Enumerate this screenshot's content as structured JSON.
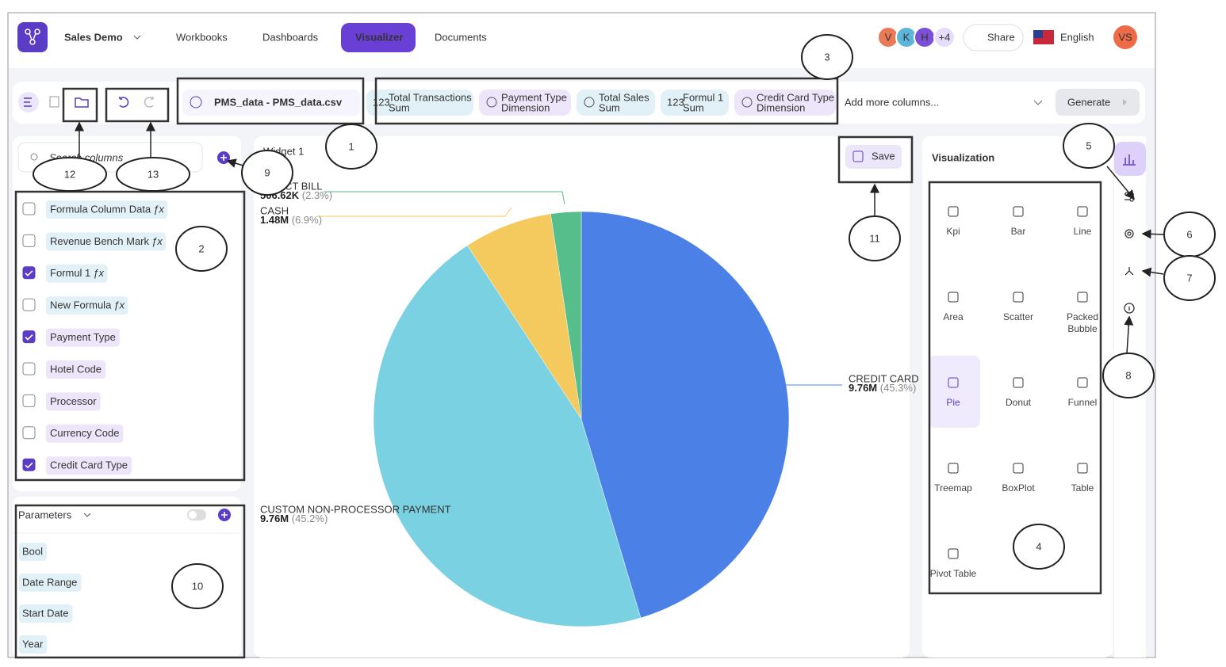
{
  "header": {
    "workspace": "Sales Demo",
    "nav": [
      "Workbooks",
      "Dashboards",
      "Visualizer",
      "Documents"
    ],
    "active_nav": "Visualizer",
    "collaborators": [
      "V",
      "K",
      "H"
    ],
    "more_collaborators": "+4",
    "share": "Share",
    "language": "English",
    "user": "VS"
  },
  "toolbar": {
    "file": "PMS_data - PMS_data.csv",
    "columns": [
      {
        "name": "Total Transactions",
        "role": "Sum",
        "badge": "123"
      },
      {
        "name": "Payment Type",
        "role": "Dimension"
      },
      {
        "name": "Total Sales",
        "role": "Sum"
      },
      {
        "name": "Formul 1",
        "role": "Sum",
        "badge": "123"
      },
      {
        "name": "Credit Card Type",
        "role": "Dimension"
      }
    ],
    "placeholder": "Add more columns...",
    "generate": "Generate"
  },
  "columns_panel": {
    "search_placeholder": "Search columns",
    "formula_symbol": "ƒx",
    "items": [
      {
        "name": "Formula Column Data",
        "formula": true,
        "checked": false
      },
      {
        "name": "Revenue Bench Mark",
        "formula": true,
        "checked": false
      },
      {
        "name": "Formul 1",
        "formula": true,
        "checked": true
      },
      {
        "name": "New Formula",
        "formula": true,
        "checked": false
      },
      {
        "name": "Payment Type",
        "formula": false,
        "checked": true
      },
      {
        "name": "Hotel Code",
        "formula": false,
        "checked": false
      },
      {
        "name": "Processor",
        "formula": false,
        "checked": false
      },
      {
        "name": "Currency Code",
        "formula": false,
        "checked": false
      },
      {
        "name": "Credit Card Type",
        "formula": false,
        "checked": true
      }
    ]
  },
  "parameters": {
    "title": "Parameters",
    "items": [
      "Bool",
      "Date Range",
      "Start Date",
      "Year"
    ]
  },
  "widget": {
    "title": "Widget 1",
    "save": "Save"
  },
  "chart_data": {
    "type": "pie",
    "categories": [
      "CREDIT CARD",
      "CUSTOM NON-PROCESSOR PAYMENT",
      "CASH",
      "DIRECT BILL"
    ],
    "values": [
      9760000,
      9760000,
      1480000,
      506620
    ],
    "value_labels": [
      "9.76M",
      "9.76M",
      "1.48M",
      "506.62K"
    ],
    "percents": [
      45.3,
      45.2,
      6.9,
      2.3
    ],
    "percent_labels": [
      "(45.3%)",
      "(45.2%)",
      "(6.9%)",
      "(2.3%)"
    ],
    "colors": [
      "#4b80e6",
      "#79d1e1",
      "#f4c95d",
      "#56be8a"
    ]
  },
  "visualization": {
    "title": "Visualization",
    "types": [
      "Kpi",
      "Bar",
      "Line",
      "Area",
      "Scatter",
      "Packed Bubble",
      "Pie",
      "Donut",
      "Funnel",
      "Treemap",
      "BoxPlot",
      "Table",
      "Pivot Table"
    ],
    "selected": "Pie"
  },
  "callouts": [
    1,
    2,
    3,
    4,
    5,
    6,
    7,
    8,
    9,
    10,
    11,
    12,
    13
  ]
}
